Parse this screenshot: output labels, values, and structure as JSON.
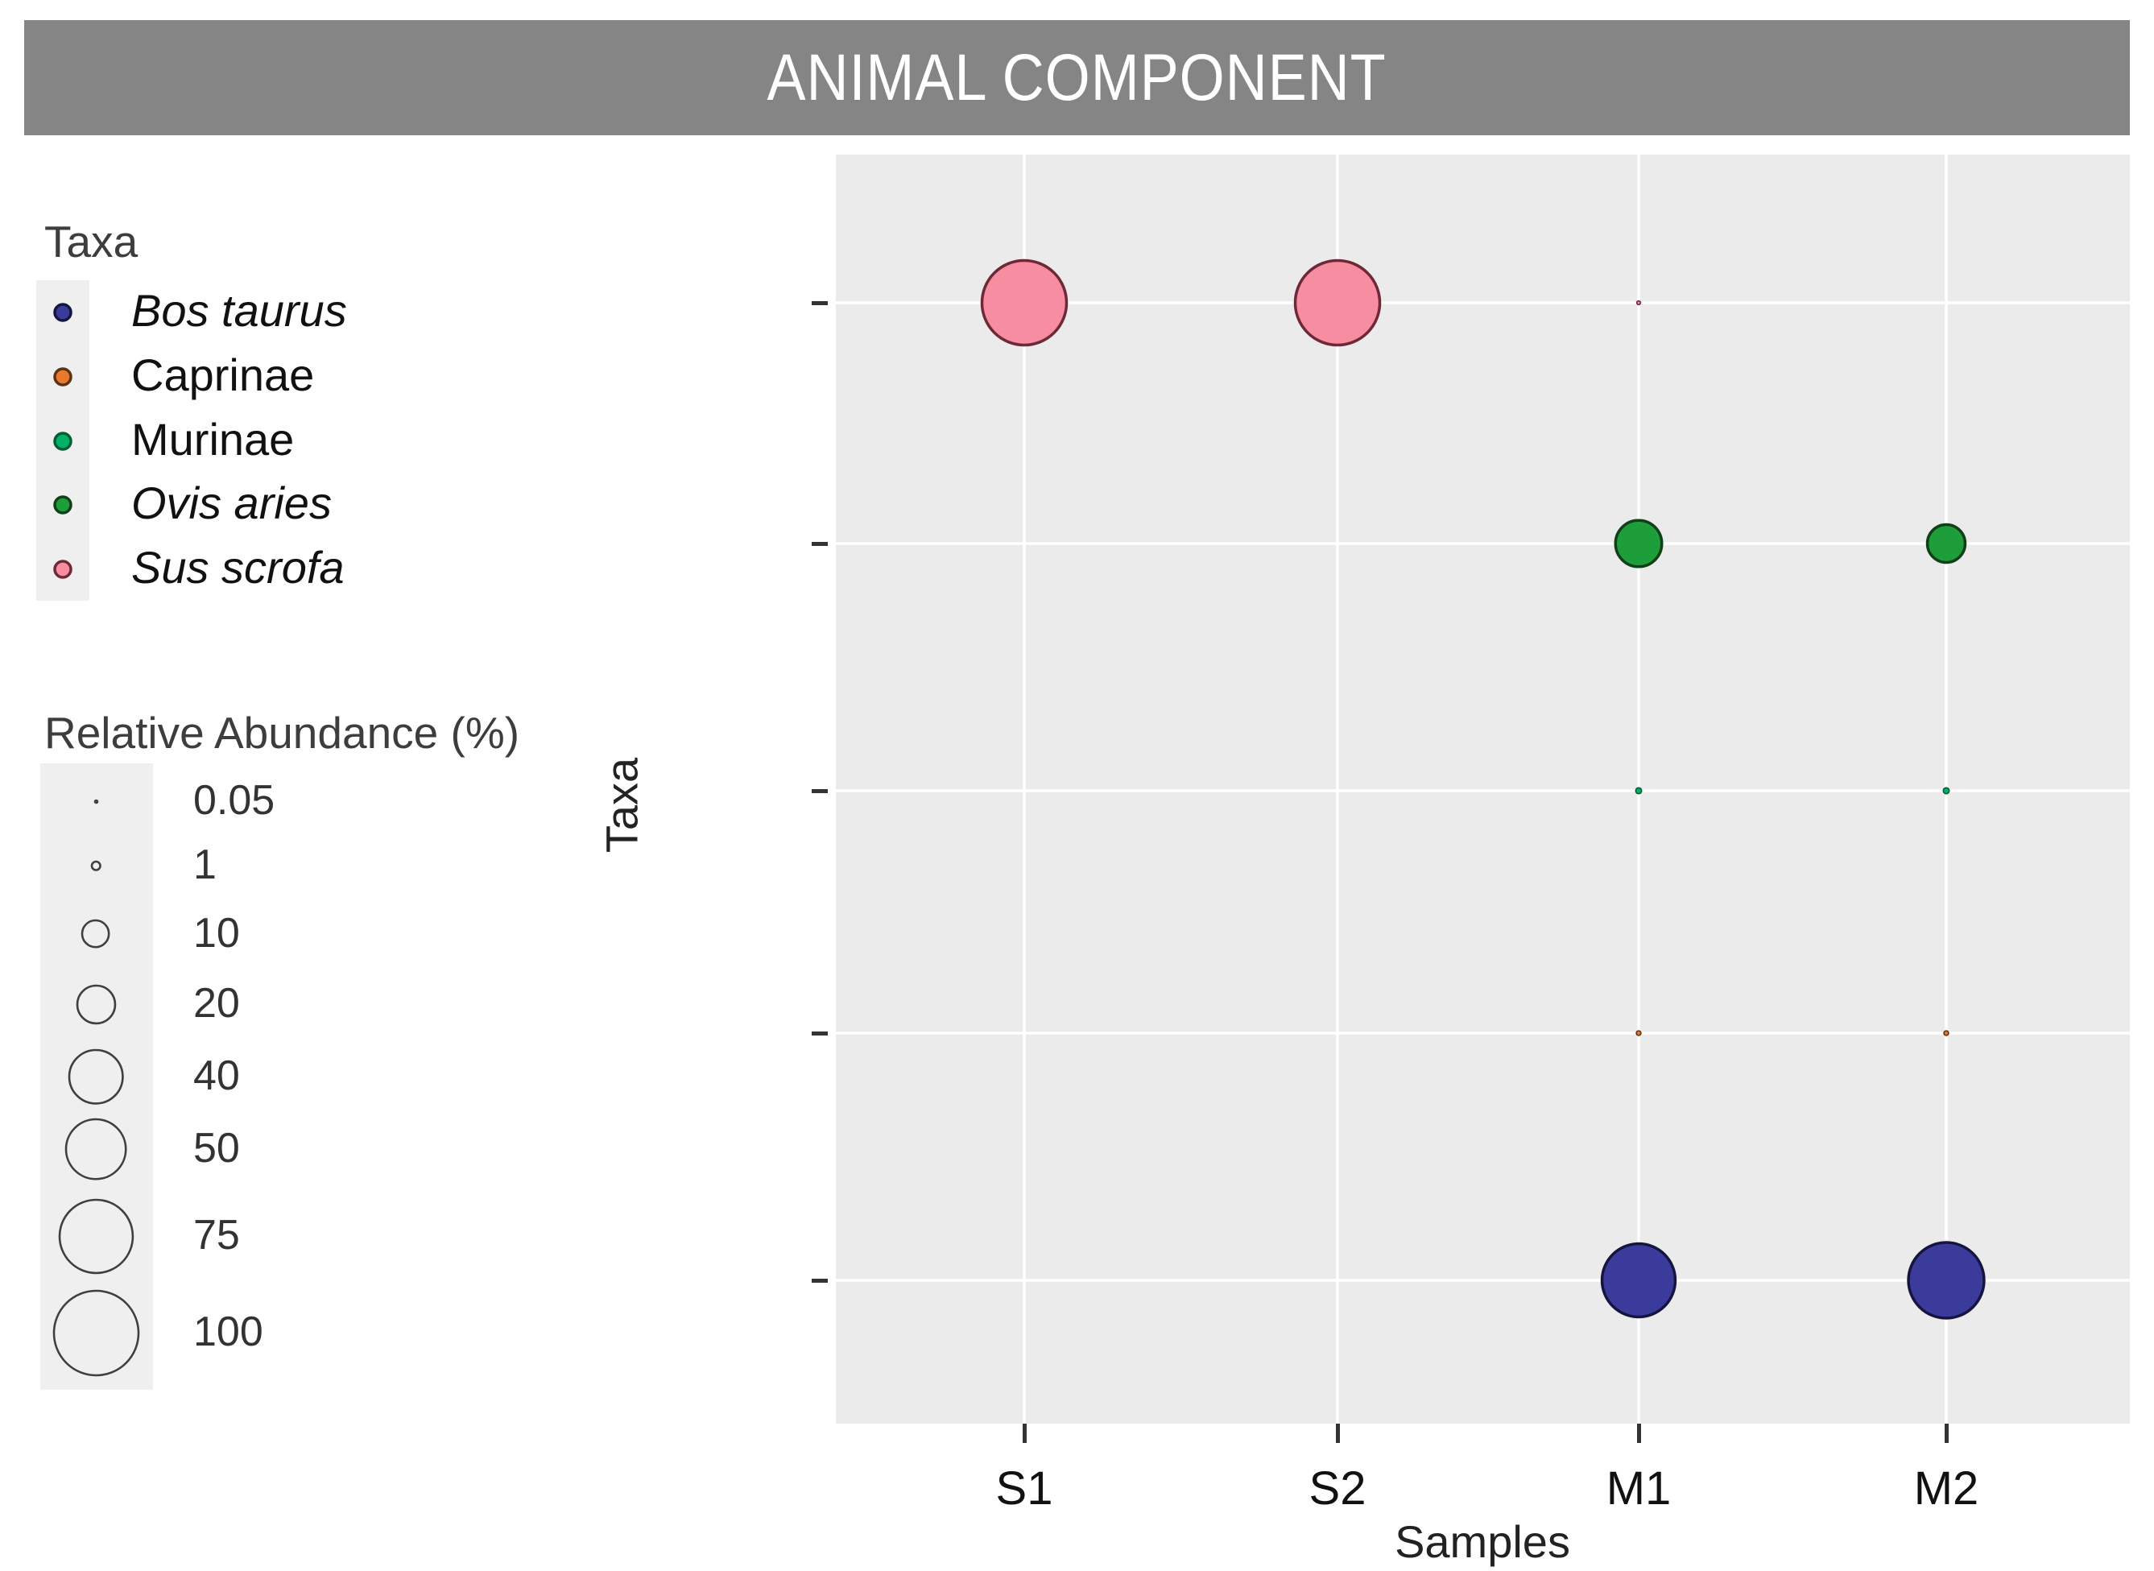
{
  "page": {
    "title_bar": {
      "text": "ANIMAL COMPONENT",
      "bg": "#858585",
      "fg": "#ffffff"
    }
  },
  "colors": {
    "panel_bg": "#ebebeb",
    "grid": "#ffffff",
    "legend_key_bg": "#efefef",
    "title_bar_bg": "#858585",
    "axis_text": "#111111"
  },
  "taxa_legend": {
    "title": "Taxa",
    "items": [
      {
        "label": "Bos taurus",
        "italic": true,
        "fill": "#3b3b9b",
        "stroke": "#15153f"
      },
      {
        "label": "Caprinae",
        "italic": false,
        "fill": "#e8792e",
        "stroke": "#5a3214"
      },
      {
        "label": "Murinae",
        "italic": false,
        "fill": "#00b268",
        "stroke": "#045c32"
      },
      {
        "label": "Ovis aries",
        "italic": true,
        "fill": "#1d9e3a",
        "stroke": "#113f18"
      },
      {
        "label": "Sus scrofa",
        "italic": true,
        "fill": "#f78da0",
        "stroke": "#6e2837"
      }
    ]
  },
  "size_legend": {
    "title": "Relative Abundance (%)",
    "items": [
      {
        "label": "0.05",
        "value": 0.05
      },
      {
        "label": "1",
        "value": 1
      },
      {
        "label": "10",
        "value": 10
      },
      {
        "label": "20",
        "value": 20
      },
      {
        "label": "40",
        "value": 40
      },
      {
        "label": "50",
        "value": 50
      },
      {
        "label": "75",
        "value": 75
      },
      {
        "label": "100",
        "value": 100
      }
    ]
  },
  "chart_data": {
    "type": "scatter",
    "subtype": "bubble",
    "title": "ANIMAL COMPONENT",
    "xlabel": "Samples",
    "ylabel": "Taxa",
    "x_categories": [
      "S1",
      "S2",
      "M1",
      "M2"
    ],
    "y_categories_top_to_bottom": [
      "Sus scrofa",
      "Ovis aries",
      "Murinae",
      "Caprinae",
      "Bos taurus"
    ],
    "y_label_italic": [
      true,
      true,
      false,
      false,
      true
    ],
    "size_encoding": "Relative Abundance (%): bubble diameter proportional to sqrt(value)",
    "legend_position": "left",
    "grid": "major gridlines only, white on light gray panel",
    "points": [
      {
        "taxon": "Sus scrofa",
        "sample": "S1",
        "abundance_pct": 100
      },
      {
        "taxon": "Sus scrofa",
        "sample": "S2",
        "abundance_pct": 100
      },
      {
        "taxon": "Sus scrofa",
        "sample": "M1",
        "abundance_pct": 0.2
      },
      {
        "taxon": "Ovis aries",
        "sample": "M1",
        "abundance_pct": 30
      },
      {
        "taxon": "Ovis aries",
        "sample": "M2",
        "abundance_pct": 20
      },
      {
        "taxon": "Murinae",
        "sample": "M1",
        "abundance_pct": 0.5
      },
      {
        "taxon": "Murinae",
        "sample": "M2",
        "abundance_pct": 0.5
      },
      {
        "taxon": "Caprinae",
        "sample": "M1",
        "abundance_pct": 0.3
      },
      {
        "taxon": "Caprinae",
        "sample": "M2",
        "abundance_pct": 0.3
      },
      {
        "taxon": "Bos taurus",
        "sample": "M1",
        "abundance_pct": 75
      },
      {
        "taxon": "Bos taurus",
        "sample": "M2",
        "abundance_pct": 80
      }
    ]
  }
}
